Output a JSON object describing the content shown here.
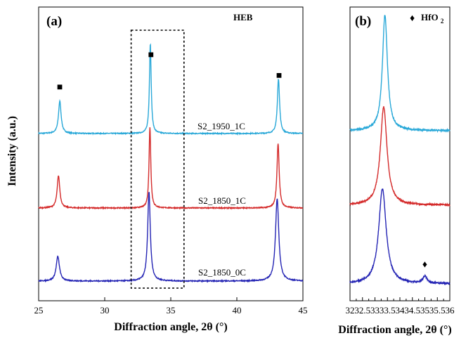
{
  "chart_data": [
    {
      "panel": "(a)",
      "type": "line",
      "annotation": "HEB",
      "xlabel": "Diffraction angle, 2θ (°)",
      "ylabel": "Intensity (a.u.)",
      "xlim": [
        25,
        45
      ],
      "xticks": [
        "25",
        "30",
        "35",
        "40",
        "45"
      ],
      "y_ticks_shown": false,
      "grid": false,
      "highlight_box_x": [
        32,
        36
      ],
      "peak_marker": "■",
      "peak_marker_positions": [
        26.6,
        33.5,
        43.2
      ],
      "series": [
        {
          "name": "S2_1950_1C",
          "color": "#29a8d8",
          "peaks": [
            {
              "x": 26.6,
              "height": 46,
              "width": 0.12
            },
            {
              "x": 33.45,
              "height": 128,
              "width": 0.08
            },
            {
              "x": 43.15,
              "height": 78,
              "width": 0.1
            }
          ]
        },
        {
          "name": "S2_1850_1C",
          "color": "#d42a2a",
          "peaks": [
            {
              "x": 26.5,
              "height": 46,
              "width": 0.12
            },
            {
              "x": 33.42,
              "height": 115,
              "width": 0.08
            },
            {
              "x": 43.12,
              "height": 92,
              "width": 0.1
            }
          ]
        },
        {
          "name": "S2_1850_0C",
          "color": "#2424b4",
          "peaks": [
            {
              "x": 26.45,
              "height": 35,
              "width": 0.15
            },
            {
              "x": 33.35,
              "height": 127,
              "width": 0.12
            },
            {
              "x": 43.05,
              "height": 117,
              "width": 0.15
            }
          ]
        }
      ]
    },
    {
      "panel": "(b)",
      "type": "line",
      "legend_symbol": "♦",
      "legend_text": "HfO",
      "legend_subscript": "2",
      "xlabel": "Diffraction angle, 2θ (°)",
      "xlim": [
        32,
        36
      ],
      "xticks": [
        "32",
        "32.5",
        "33",
        "33.5",
        "34",
        "34.5",
        "35",
        "35.5",
        "36"
      ],
      "y_ticks_shown": false,
      "grid": false,
      "marker_position": 35.0,
      "series": [
        {
          "name": "S2_1950_1C",
          "color": "#29a8d8",
          "peaks": [
            {
              "x": 33.4,
              "height": 165,
              "width": 0.12
            }
          ]
        },
        {
          "name": "S2_1850_1C",
          "color": "#d42a2a",
          "peaks": [
            {
              "x": 33.35,
              "height": 140,
              "width": 0.16
            }
          ]
        },
        {
          "name": "S2_1850_0C",
          "color": "#2424b4",
          "peaks": [
            {
              "x": 33.3,
              "height": 135,
              "width": 0.18
            },
            {
              "x": 35.0,
              "height": 10,
              "width": 0.1
            }
          ]
        }
      ]
    }
  ]
}
